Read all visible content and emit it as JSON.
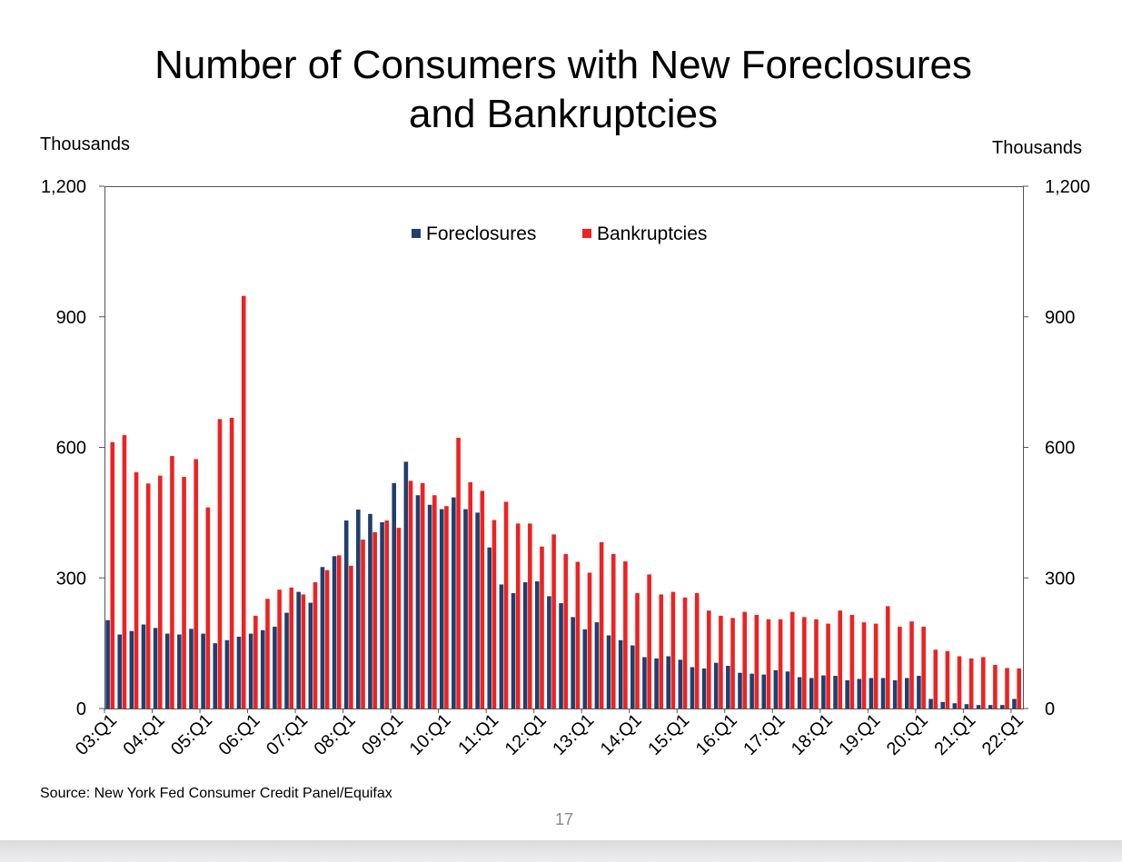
{
  "slide": {
    "page_number": "17"
  },
  "chart_data": {
    "type": "bar",
    "title_line1": "Number of Consumers with New Foreclosures",
    "title_line2": "and Bankruptcies",
    "ylabel_left": "Thousands",
    "ylabel_right": "Thousands",
    "ylim": [
      0,
      1200
    ],
    "yticks": [
      "0",
      "300",
      "600",
      "900",
      "1,200"
    ],
    "ytick_values": [
      0,
      300,
      600,
      900,
      1200
    ],
    "x_tick_labels": [
      "03:Q1",
      "04:Q1",
      "05:Q1",
      "06:Q1",
      "07:Q1",
      "08:Q1",
      "09:Q1",
      "10:Q1",
      "11:Q1",
      "12:Q1",
      "13:Q1",
      "14:Q1",
      "15:Q1",
      "16:Q1",
      "17:Q1",
      "18:Q1",
      "19:Q1",
      "20:Q1",
      "21:Q1",
      "22:Q1"
    ],
    "legend_position": "top-center",
    "source": "Source: New York Fed Consumer Credit Panel/Equifax",
    "series": [
      {
        "name": "Foreclosures",
        "color": "#1f3f6e",
        "values": [
          203,
          170,
          178,
          193,
          185,
          172,
          170,
          183,
          172,
          150,
          157,
          165,
          172,
          180,
          188,
          220,
          268,
          243,
          325,
          350,
          432,
          457,
          447,
          428,
          518,
          567,
          490,
          468,
          458,
          485,
          458,
          450,
          370,
          285,
          265,
          290,
          292,
          258,
          242,
          210,
          182,
          198,
          168,
          157,
          145,
          118,
          115,
          120,
          112,
          95,
          92,
          105,
          98,
          82,
          80,
          78,
          88,
          85,
          72,
          70,
          76,
          75,
          65,
          68,
          70,
          70,
          65,
          70,
          75,
          22,
          15,
          12,
          10,
          8,
          8,
          8,
          22
        ]
      },
      {
        "name": "Bankruptcies",
        "color": "#ee2222",
        "values": [
          612,
          628,
          543,
          517,
          535,
          580,
          532,
          573,
          462,
          665,
          668,
          948,
          213,
          252,
          273,
          278,
          262,
          290,
          318,
          352,
          328,
          388,
          405,
          432,
          415,
          523,
          518,
          490,
          465,
          622,
          520,
          500,
          433,
          475,
          425,
          425,
          372,
          400,
          355,
          337,
          312,
          382,
          355,
          338,
          265,
          308,
          262,
          268,
          255,
          265,
          225,
          213,
          208,
          222,
          215,
          205,
          205,
          222,
          210,
          205,
          195,
          225,
          215,
          198,
          195,
          235,
          188,
          200,
          188,
          135,
          132,
          120,
          115,
          118,
          100,
          93,
          92
        ]
      }
    ]
  }
}
